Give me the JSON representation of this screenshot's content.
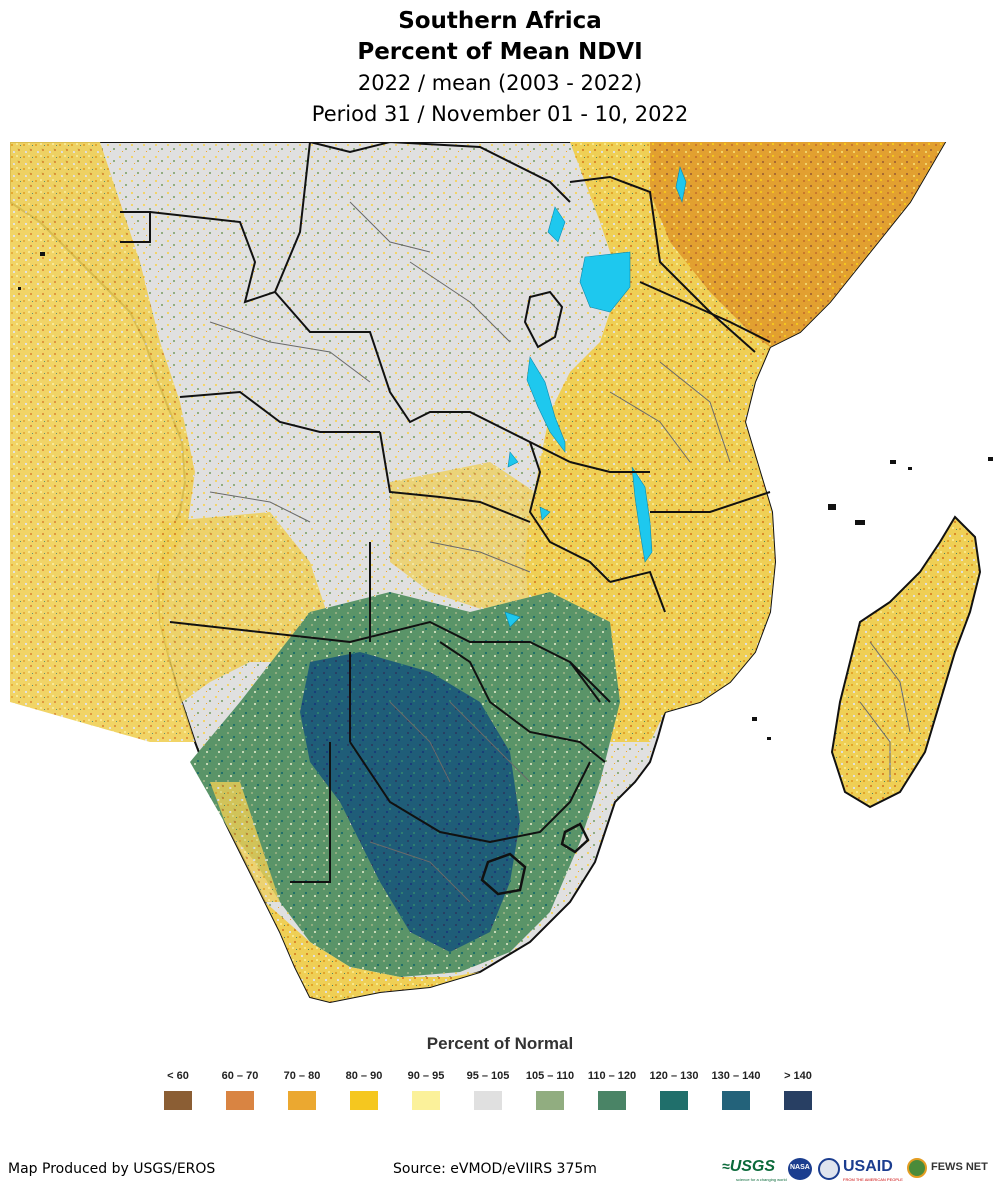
{
  "title": {
    "line1": "Southern Africa",
    "line2": "Percent of Mean NDVI",
    "line3": "2022 / mean (2003 - 2022)",
    "line4": "Period 31 / November 01 - 10, 2022"
  },
  "legend": {
    "title": "Percent of Normal",
    "items": [
      {
        "label": "< 60",
        "color": "#8b5e34"
      },
      {
        "label": "60 – 70",
        "color": "#d98442"
      },
      {
        "label": "70 – 80",
        "color": "#eba830"
      },
      {
        "label": "80 – 90",
        "color": "#f5c71f"
      },
      {
        "label": "90 – 95",
        "color": "#fbf19a"
      },
      {
        "label": "95 – 105",
        "color": "#e0e0e0"
      },
      {
        "label": "105 – 110",
        "color": "#91ad80"
      },
      {
        "label": "110 – 120",
        "color": "#4a8466"
      },
      {
        "label": "120 – 130",
        "color": "#206f6b"
      },
      {
        "label": "130 – 140",
        "color": "#23627a"
      },
      {
        "label": "> 140",
        "color": "#283f63"
      }
    ]
  },
  "footer": {
    "produced_by": "Map Produced by USGS/EROS",
    "source": "Source: eVMOD/eVIIRS 375m"
  },
  "logos": {
    "usgs": "USGS",
    "usgs_tagline": "science for a changing world",
    "nasa": "NASA",
    "usaid": "USAID",
    "usaid_tagline": "FROM THE AMERICAN PEOPLE",
    "fewsnet": "FEWS NET"
  },
  "colors": {
    "water": "#1ec8ee",
    "land_normal": "#e0e0e0",
    "border": "#1a1a1a",
    "subborder": "#666666"
  }
}
